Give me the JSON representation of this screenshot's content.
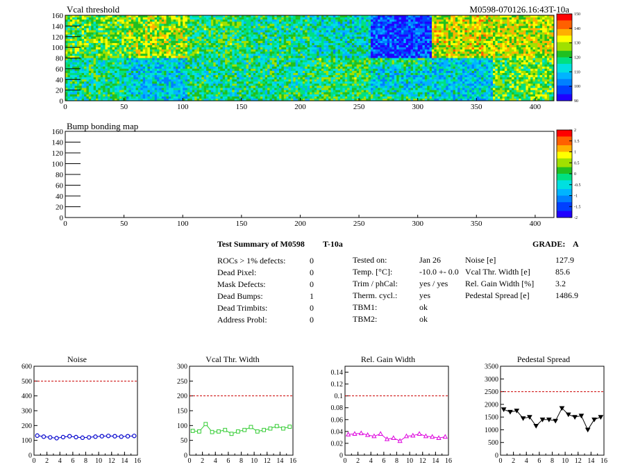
{
  "colors": {
    "palette": [
      "#2000ff",
      "#0040ff",
      "#0080ff",
      "#00b4ff",
      "#00e0e0",
      "#00e080",
      "#20c020",
      "#a0e000",
      "#ffff00",
      "#ffb000",
      "#ff6000",
      "#ff0000"
    ],
    "limit_line": "#cc0000",
    "noise_series": "#0000cc",
    "vcal_series": "#33cc33",
    "gain_series": "#dd00dd",
    "pedestal_series": "#000000"
  },
  "threshold_map": {
    "title": "Vcal threshold",
    "module_label": "M0598-070126.16:43T-10a",
    "x_ticks": [
      "0",
      "50",
      "100",
      "150",
      "200",
      "250",
      "300",
      "350",
      "400"
    ],
    "y_ticks": [
      "0",
      "20",
      "40",
      "60",
      "80",
      "100",
      "120",
      "140",
      "160"
    ],
    "palette_ticks": [
      "150",
      "140",
      "130",
      "120",
      "110",
      "100",
      "90"
    ],
    "roc_levels": [
      [
        0.55,
        0.62,
        0.5,
        0.45,
        0.4,
        0.12,
        0.68,
        0.66
      ],
      [
        0.45,
        0.35,
        0.45,
        0.45,
        0.5,
        0.5,
        0.35,
        0.55
      ]
    ]
  },
  "bump_map": {
    "title": "Bump bonding map",
    "x_ticks": [
      "0",
      "50",
      "100",
      "150",
      "200",
      "250",
      "300",
      "350",
      "400"
    ],
    "y_ticks": [
      "0",
      "20",
      "40",
      "60",
      "80",
      "100",
      "120",
      "140",
      "160"
    ],
    "palette_ticks": [
      "2",
      "1.5",
      "1",
      "0.5",
      "0",
      "-0.5",
      "-1",
      "-1.5",
      "-2"
    ]
  },
  "summary": {
    "title": "Test Summary of M0598",
    "test_id": "T-10a",
    "grade_label": "GRADE:",
    "grade": "A",
    "defects": [
      {
        "label": "ROCs > 1% defects:",
        "value": "0"
      },
      {
        "label": "Dead Pixel:",
        "value": "0"
      },
      {
        "label": "Mask Defects:",
        "value": "0"
      },
      {
        "label": "Dead Bumps:",
        "value": "1"
      },
      {
        "label": "Dead Trimbits:",
        "value": "0"
      },
      {
        "label": "Address Probl:",
        "value": "0"
      }
    ],
    "conditions": [
      {
        "label": "Tested on:",
        "value": "Jan 26"
      },
      {
        "label": "Temp. [°C]:",
        "value": "-10.0 +- 0.0"
      },
      {
        "label": "Trim / phCal:",
        "value": "yes / yes"
      },
      {
        "label": "Therm. cycl.:",
        "value": "yes"
      },
      {
        "label": "TBM1:",
        "value": "ok"
      },
      {
        "label": "TBM2:",
        "value": "ok"
      }
    ],
    "results": [
      {
        "label": "Noise [e]",
        "value": "127.9"
      },
      {
        "label": "Vcal Thr. Width [e]",
        "value": "85.6"
      },
      {
        "label": "Rel. Gain Width [%]",
        "value": "3.2"
      },
      {
        "label": "Pedestal Spread [e]",
        "value": "1486.9"
      }
    ]
  },
  "chart_data": [
    {
      "type": "scatter",
      "title": "Noise",
      "x": [
        0,
        1,
        2,
        3,
        4,
        5,
        6,
        7,
        8,
        9,
        10,
        11,
        12,
        13,
        14,
        15
      ],
      "values": [
        132,
        125,
        120,
        115,
        122,
        128,
        122,
        118,
        120,
        125,
        128,
        130,
        128,
        125,
        128,
        130
      ],
      "xlim": [
        0,
        16
      ],
      "ylim": [
        0,
        600
      ],
      "x_ticks": [
        "0",
        "2",
        "4",
        "6",
        "8",
        "10",
        "12",
        "14",
        "16"
      ],
      "y_ticks": [
        "0",
        "100",
        "200",
        "300",
        "400",
        "500",
        "600"
      ],
      "limit": 500,
      "marker": "circle"
    },
    {
      "type": "line",
      "title": "Vcal Thr. Width",
      "x": [
        0,
        1,
        2,
        3,
        4,
        5,
        6,
        7,
        8,
        9,
        10,
        11,
        12,
        13,
        14,
        15
      ],
      "values": [
        82,
        80,
        105,
        78,
        80,
        85,
        72,
        80,
        85,
        95,
        80,
        85,
        90,
        98,
        90,
        96
      ],
      "xlim": [
        0,
        16
      ],
      "ylim": [
        0,
        300
      ],
      "x_ticks": [
        "0",
        "2",
        "4",
        "6",
        "8",
        "10",
        "12",
        "14",
        "16"
      ],
      "y_ticks": [
        "0",
        "50",
        "100",
        "150",
        "200",
        "250",
        "300"
      ],
      "limit": 200,
      "marker": "square"
    },
    {
      "type": "line",
      "title": "Rel. Gain Width",
      "x": [
        0,
        1,
        2,
        3,
        4,
        5,
        6,
        7,
        8,
        9,
        10,
        11,
        12,
        13,
        14,
        15
      ],
      "values": [
        0.035,
        0.036,
        0.037,
        0.034,
        0.032,
        0.036,
        0.027,
        0.029,
        0.024,
        0.032,
        0.033,
        0.036,
        0.032,
        0.031,
        0.029,
        0.031
      ],
      "xlim": [
        0,
        16
      ],
      "ylim": [
        0,
        0.15
      ],
      "x_ticks": [
        "0",
        "2",
        "4",
        "6",
        "8",
        "10",
        "12",
        "14",
        "16"
      ],
      "y_ticks": [
        "0",
        "0.02",
        "0.04",
        "0.06",
        "0.08",
        "0.1",
        "0.12",
        "0.14"
      ],
      "limit": 0.1,
      "marker": "triangle"
    },
    {
      "type": "line",
      "title": "Pedestal Spread",
      "x": [
        0,
        1,
        2,
        3,
        4,
        5,
        6,
        7,
        8,
        9,
        10,
        11,
        12,
        13,
        14,
        15
      ],
      "values": [
        1800,
        1700,
        1750,
        1450,
        1500,
        1150,
        1400,
        1400,
        1350,
        1850,
        1600,
        1500,
        1550,
        1000,
        1400,
        1500
      ],
      "xlim": [
        0,
        16
      ],
      "ylim": [
        0,
        3500
      ],
      "x_ticks": [
        "0",
        "2",
        "4",
        "6",
        "8",
        "10",
        "12",
        "14",
        "16"
      ],
      "y_ticks": [
        "0",
        "500",
        "1000",
        "1500",
        "2000",
        "2500",
        "3000",
        "3500"
      ],
      "limit": 2500,
      "marker": "triangle-down"
    }
  ]
}
